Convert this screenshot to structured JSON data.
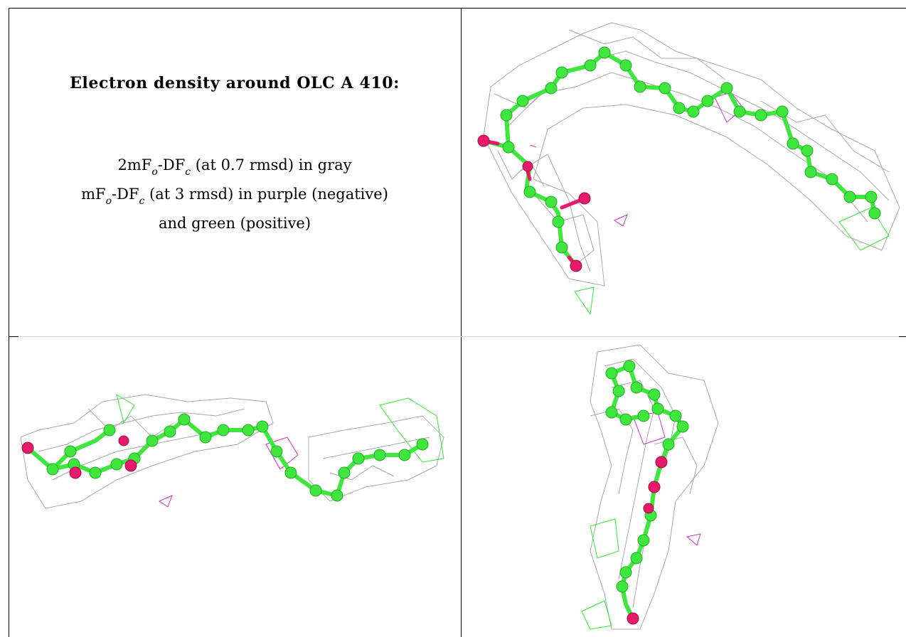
{
  "caption": {
    "title": "Electron density around OLC A 410:",
    "line1": {
      "a": "2mF",
      "o": "o",
      "b": "-DF",
      "c": "c",
      "rest": " (at 0.7 rmsd) in gray"
    },
    "line2": {
      "a": "mF",
      "o": "o",
      "b": "-DF",
      "c": "c",
      "rest": " (at 3 rmsd) in purple (negative)"
    },
    "line3": "and green (positive)"
  },
  "colors": {
    "carbon": "#3ee63e",
    "oxygen": "#e8196a",
    "mesh_gray": "#9a9a9a",
    "mesh_negative": "#cc33cc",
    "mesh_positive": "#33e633"
  },
  "panels": [
    {
      "view": "top-right",
      "content": "density-view-1"
    },
    {
      "view": "bottom-left",
      "content": "density-view-2"
    },
    {
      "view": "bottom-right",
      "content": "density-view-3"
    }
  ]
}
